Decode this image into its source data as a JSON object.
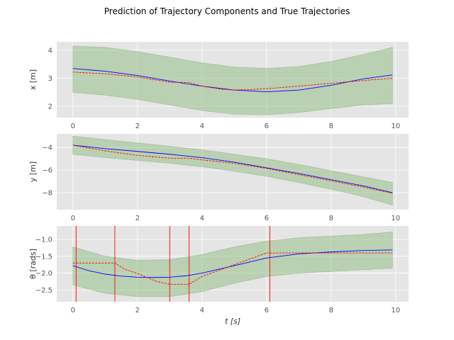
{
  "chart_data": {
    "title": "Prediction of Trajectory Components and True Trajectories",
    "xlabel": "t [s]",
    "colors": {
      "background": "#e5e5e5",
      "grid": "#ffffff",
      "band": "#8fbc7f",
      "prediction": "#0000ff",
      "truth": "#ff0000",
      "event_lines": "#ff0000"
    },
    "grid": true,
    "subplots": [
      {
        "type": "line",
        "ylabel": "x [m]",
        "xlim": [
          -0.5,
          10.4
        ],
        "ylim": [
          1.6,
          4.3
        ],
        "xticks": [
          0,
          2,
          4,
          6,
          8,
          10
        ],
        "yticks": [
          2,
          3,
          4
        ],
        "ytick_labels": [
          "2",
          "3",
          "4"
        ],
        "series": [
          {
            "role": "prediction",
            "style": "solid",
            "x": [
              0,
              1,
              2,
              3,
              4,
              5,
              6,
              7,
              8,
              9,
              9.9
            ],
            "y": [
              3.35,
              3.25,
              3.1,
              2.9,
              2.72,
              2.58,
              2.52,
              2.58,
              2.75,
              2.98,
              3.12
            ]
          },
          {
            "role": "truth",
            "style": "dashed",
            "x": [
              0,
              1,
              2,
              3,
              3.6,
              4,
              4.6,
              5,
              5.5,
              6,
              7,
              8,
              9,
              9.9
            ],
            "y": [
              3.22,
              3.16,
              3.05,
              2.86,
              2.85,
              2.72,
              2.61,
              2.58,
              2.6,
              2.63,
              2.72,
              2.82,
              2.92,
              3.0
            ]
          }
        ],
        "band": {
          "x": [
            0,
            1,
            2,
            3,
            4,
            5,
            6,
            7,
            8,
            9,
            9.9
          ],
          "upper": [
            4.15,
            4.1,
            3.95,
            3.75,
            3.55,
            3.4,
            3.35,
            3.42,
            3.6,
            3.85,
            4.1
          ],
          "lower": [
            2.5,
            2.4,
            2.25,
            2.05,
            1.85,
            1.72,
            1.7,
            1.78,
            1.92,
            2.05,
            2.1
          ]
        }
      },
      {
        "type": "line",
        "ylabel": "y [m]",
        "xlim": [
          -0.5,
          10.4
        ],
        "ylim": [
          -9.5,
          -2.8
        ],
        "xticks": [
          0,
          2,
          4,
          6,
          8,
          10
        ],
        "yticks": [
          -8,
          -6,
          -4
        ],
        "ytick_labels": [
          "−8",
          "−6",
          "−4"
        ],
        "series": [
          {
            "role": "prediction",
            "style": "solid",
            "x": [
              0,
              1,
              2,
              3,
              4,
              5,
              6,
              7,
              8,
              9,
              9.9
            ],
            "y": [
              -3.8,
              -4.1,
              -4.35,
              -4.6,
              -4.9,
              -5.3,
              -5.8,
              -6.3,
              -6.85,
              -7.4,
              -8.0
            ]
          },
          {
            "role": "truth",
            "style": "dashed",
            "x": [
              0,
              1,
              2,
              3,
              3.6,
              4,
              5,
              6,
              7,
              8,
              9,
              9.9
            ],
            "y": [
              -3.8,
              -4.3,
              -4.7,
              -4.95,
              -4.95,
              -5.1,
              -5.4,
              -5.85,
              -6.4,
              -6.95,
              -7.5,
              -8.05
            ]
          }
        ],
        "band": {
          "x": [
            0,
            1,
            2,
            3,
            4,
            5,
            6,
            7,
            8,
            9,
            9.9
          ],
          "upper": [
            -3.0,
            -3.3,
            -3.6,
            -3.9,
            -4.2,
            -4.6,
            -5.0,
            -5.5,
            -6.05,
            -6.6,
            -7.1
          ],
          "lower": [
            -4.6,
            -4.9,
            -5.15,
            -5.4,
            -5.7,
            -6.1,
            -6.55,
            -7.1,
            -7.7,
            -8.35,
            -9.1
          ]
        }
      },
      {
        "type": "line",
        "ylabel": "θ [rads]",
        "xlim": [
          -0.5,
          10.4
        ],
        "ylim": [
          -2.85,
          -0.6
        ],
        "xticks": [
          0,
          2,
          4,
          6,
          8,
          10
        ],
        "yticks": [
          -2.5,
          -2.0,
          -1.5,
          -1.0
        ],
        "ytick_labels": [
          "−2.5",
          "−2.0",
          "−1.5",
          "−1.0"
        ],
        "series": [
          {
            "role": "prediction",
            "style": "solid",
            "x": [
              0,
              0.5,
              1,
              1.5,
              2,
              2.5,
              3,
              3.5,
              4,
              5,
              6,
              7,
              8,
              9,
              9.9
            ],
            "y": [
              -1.78,
              -1.93,
              -2.03,
              -2.09,
              -2.12,
              -2.13,
              -2.12,
              -2.08,
              -2.0,
              -1.78,
              -1.55,
              -1.43,
              -1.37,
              -1.33,
              -1.31
            ]
          },
          {
            "role": "truth",
            "style": "dashed",
            "x": [
              0,
              1.3,
              1.6,
              2.1,
              2.6,
              3.0,
              3.6,
              4.0,
              5.0,
              6.0,
              6.5,
              9.9
            ],
            "y": [
              -1.7,
              -1.7,
              -1.88,
              -2.05,
              -2.25,
              -2.33,
              -2.33,
              -2.1,
              -1.75,
              -1.4,
              -1.4,
              -1.4
            ]
          }
        ],
        "band": {
          "x": [
            0,
            1,
            2,
            3,
            4,
            5,
            6,
            7,
            8,
            9,
            9.9
          ],
          "upper": [
            -1.22,
            -1.5,
            -1.62,
            -1.6,
            -1.45,
            -1.22,
            -1.05,
            -0.95,
            -0.9,
            -0.85,
            -0.78
          ],
          "lower": [
            -2.35,
            -2.6,
            -2.7,
            -2.7,
            -2.55,
            -2.3,
            -2.1,
            -2.0,
            -1.95,
            -1.9,
            -1.85
          ]
        },
        "vlines": [
          0.1,
          1.3,
          3.0,
          3.6,
          6.1
        ]
      }
    ]
  }
}
